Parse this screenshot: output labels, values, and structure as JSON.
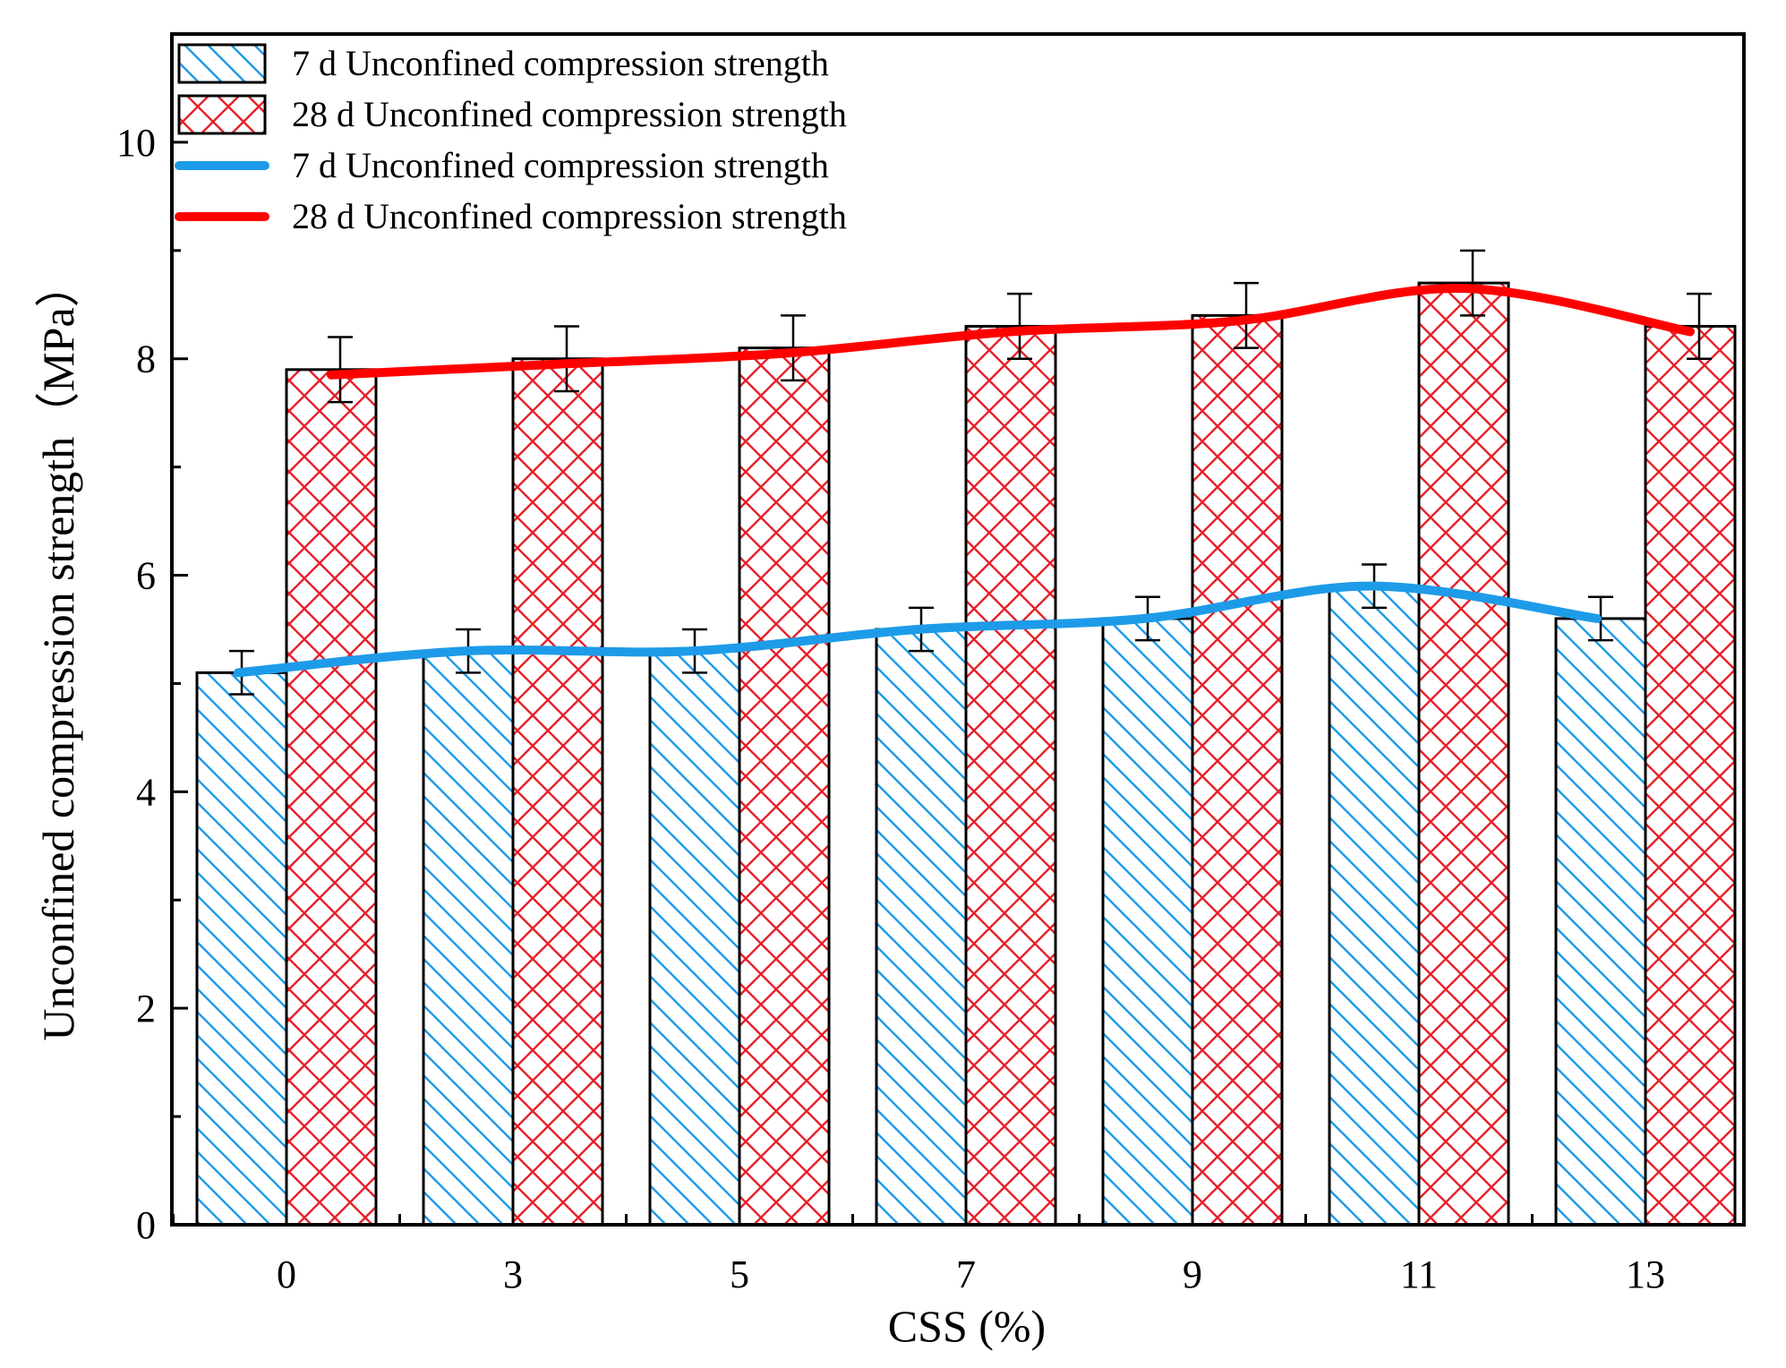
{
  "chart_data": {
    "type": "bar",
    "xlabel": "CSS (%)",
    "ylabel": "Unconfined compression strength（MPa）",
    "ylim": [
      0,
      11
    ],
    "yticks": [
      0,
      2,
      4,
      6,
      8,
      10
    ],
    "categories": [
      "0",
      "3",
      "5",
      "7",
      "9",
      "11",
      "13"
    ],
    "series": [
      {
        "name": "7 d Unconfined compression strength",
        "kind": "bar",
        "pattern": "diagonal-hatch",
        "color": "#1e9be8",
        "values": [
          5.1,
          5.3,
          5.3,
          5.5,
          5.6,
          5.9,
          5.6
        ],
        "errors": [
          0.2,
          0.2,
          0.2,
          0.2,
          0.2,
          0.2,
          0.2
        ]
      },
      {
        "name": "28 d Unconfined compression strength",
        "kind": "bar",
        "pattern": "cross-hatch",
        "color": "#e8202a",
        "values": [
          7.9,
          8.0,
          8.1,
          8.3,
          8.4,
          8.7,
          8.3
        ],
        "errors": [
          0.3,
          0.3,
          0.3,
          0.3,
          0.3,
          0.3,
          0.3
        ]
      },
      {
        "name": "7 d Unconfined compression strength",
        "kind": "line",
        "color": "#1e9be8",
        "values": [
          5.1,
          5.3,
          5.3,
          5.5,
          5.6,
          5.9,
          5.6
        ]
      },
      {
        "name": "28 d Unconfined compression strength",
        "kind": "line",
        "color": "#ff0000",
        "values": [
          7.9,
          8.0,
          8.1,
          8.3,
          8.4,
          8.7,
          8.3
        ]
      }
    ],
    "legend": {
      "position": "top-left",
      "entries": [
        "7 d Unconfined compression strength",
        "28 d Unconfined compression strength",
        "7 d Unconfined compression strength",
        "28 d Unconfined compression strength"
      ]
    }
  }
}
